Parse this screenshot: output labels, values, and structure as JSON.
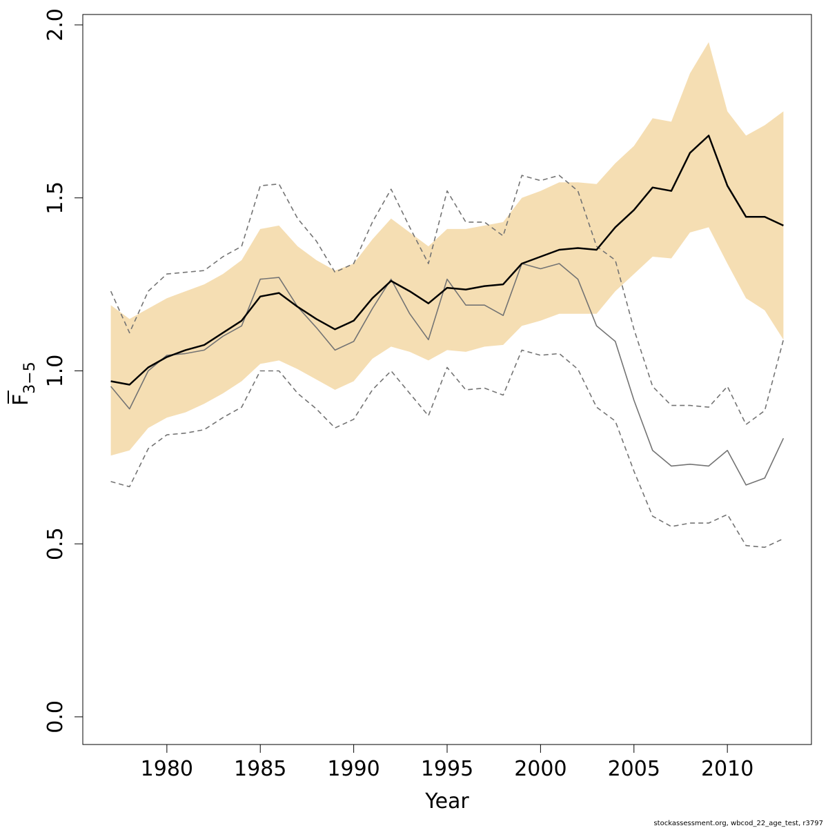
{
  "chart_data": {
    "type": "line",
    "xlabel": "Year",
    "ylabel": {
      "main": "F",
      "sub": "3−5",
      "overline": true
    },
    "xlim": [
      1975.5,
      2014.5
    ],
    "ylim": [
      -0.08,
      2.03
    ],
    "xticks": [
      1980,
      1985,
      1990,
      1995,
      2000,
      2005,
      2010
    ],
    "yticks": [
      0.0,
      0.5,
      1.0,
      1.5,
      2.0
    ],
    "ytick_labels": [
      "0.0",
      "0.5",
      "1.0",
      "1.5",
      "2.0"
    ],
    "grid": false,
    "legend": "none",
    "x": [
      1977,
      1978,
      1979,
      1980,
      1981,
      1982,
      1983,
      1984,
      1985,
      1986,
      1987,
      1988,
      1989,
      1990,
      1991,
      1992,
      1993,
      1994,
      1995,
      1996,
      1997,
      1998,
      1999,
      2000,
      2001,
      2002,
      2003,
      2004,
      2005,
      2006,
      2007,
      2008,
      2009,
      2010,
      2011,
      2012,
      2013
    ],
    "series": [
      {
        "role": "band_upper",
        "color": "#f5deb3",
        "values": [
          1.19,
          1.15,
          1.18,
          1.21,
          1.23,
          1.25,
          1.28,
          1.32,
          1.41,
          1.42,
          1.36,
          1.32,
          1.29,
          1.31,
          1.38,
          1.44,
          1.4,
          1.36,
          1.41,
          1.41,
          1.42,
          1.43,
          1.5,
          1.52,
          1.545,
          1.545,
          1.54,
          1.6,
          1.65,
          1.73,
          1.72,
          1.86,
          1.95,
          1.75,
          1.68,
          1.71,
          1.75
        ]
      },
      {
        "role": "band_lower",
        "color": "#f5deb3",
        "values": [
          0.755,
          0.77,
          0.835,
          0.865,
          0.88,
          0.905,
          0.935,
          0.97,
          1.02,
          1.03,
          1.005,
          0.975,
          0.945,
          0.97,
          1.035,
          1.07,
          1.055,
          1.03,
          1.06,
          1.055,
          1.07,
          1.075,
          1.13,
          1.145,
          1.165,
          1.165,
          1.165,
          1.23,
          1.28,
          1.33,
          1.325,
          1.4,
          1.415,
          1.31,
          1.21,
          1.175,
          1.09
        ]
      },
      {
        "role": "estimate",
        "color": "#000000",
        "values": [
          0.97,
          0.96,
          1.01,
          1.04,
          1.06,
          1.075,
          1.11,
          1.145,
          1.215,
          1.225,
          1.185,
          1.15,
          1.12,
          1.145,
          1.21,
          1.26,
          1.23,
          1.195,
          1.24,
          1.235,
          1.245,
          1.25,
          1.31,
          1.33,
          1.35,
          1.355,
          1.35,
          1.415,
          1.465,
          1.53,
          1.52,
          1.63,
          1.68,
          1.535,
          1.445,
          1.445,
          1.42
        ]
      },
      {
        "role": "retro",
        "color": "#737373",
        "values": [
          0.955,
          0.89,
          1.0,
          1.045,
          1.05,
          1.06,
          1.1,
          1.13,
          1.265,
          1.27,
          1.185,
          1.125,
          1.06,
          1.085,
          1.18,
          1.265,
          1.165,
          1.09,
          1.265,
          1.19,
          1.19,
          1.16,
          1.31,
          1.295,
          1.31,
          1.265,
          1.13,
          1.085,
          0.915,
          0.77,
          0.725,
          0.73,
          0.725,
          0.77,
          0.67,
          0.69,
          0.805
        ]
      },
      {
        "role": "retro_upper",
        "color": "#737373",
        "dashed": true,
        "values": [
          1.23,
          1.11,
          1.23,
          1.28,
          1.285,
          1.29,
          1.33,
          1.36,
          1.535,
          1.54,
          1.44,
          1.375,
          1.285,
          1.31,
          1.43,
          1.525,
          1.415,
          1.31,
          1.52,
          1.43,
          1.43,
          1.39,
          1.565,
          1.55,
          1.565,
          1.52,
          1.36,
          1.32,
          1.12,
          0.955,
          0.9,
          0.9,
          0.895,
          0.955,
          0.845,
          0.885,
          1.09
        ]
      },
      {
        "role": "retro_lower",
        "color": "#737373",
        "dashed": true,
        "values": [
          0.68,
          0.665,
          0.775,
          0.815,
          0.82,
          0.83,
          0.865,
          0.895,
          1.0,
          1.0,
          0.935,
          0.89,
          0.835,
          0.86,
          0.945,
          1.0,
          0.935,
          0.87,
          1.01,
          0.945,
          0.95,
          0.93,
          1.06,
          1.045,
          1.05,
          1.005,
          0.895,
          0.855,
          0.71,
          0.58,
          0.55,
          0.56,
          0.56,
          0.585,
          0.495,
          0.49,
          0.515
        ]
      }
    ]
  },
  "footer": {
    "credit": "stockassessment.org, wbcod_22_age_test, r3797"
  }
}
